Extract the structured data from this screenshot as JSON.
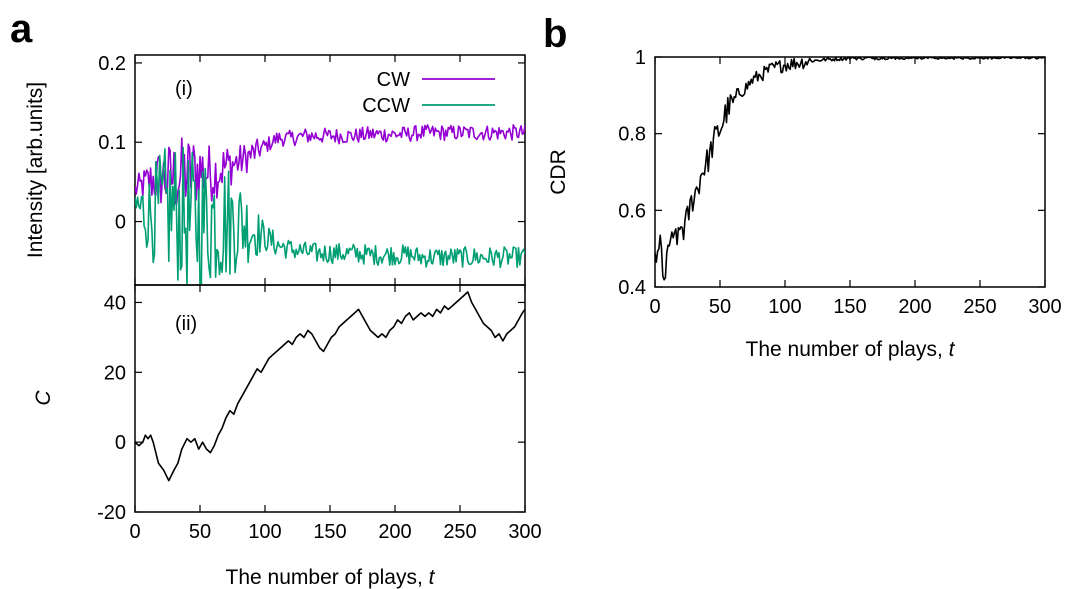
{
  "colors": {
    "cw": "#9400d3",
    "ccw": "#009e73",
    "black": "#000000"
  },
  "panel_labels": {
    "a": "a",
    "b": "b"
  },
  "chart_data": [
    {
      "panel": "a(i)",
      "type": "line",
      "label": "(i)",
      "ylabel": "Intensity [arb.units]",
      "xlabel": "",
      "xlim": [
        0,
        300
      ],
      "ylim": [
        -0.08,
        0.21
      ],
      "xticks": [
        "0",
        "50",
        "100",
        "150",
        "200",
        "250",
        "300"
      ],
      "yticks": [
        {
          "value": 0,
          "label": "0"
        },
        {
          "value": 0.1,
          "label": "0.1"
        },
        {
          "value": 0.2,
          "label": "0.2"
        }
      ],
      "legend_position": "top-right",
      "series": [
        {
          "name": "CW",
          "color": "#9400d3",
          "points": [
            [
              0,
              0.04
            ],
            [
              10,
              0.05
            ],
            [
              20,
              0.055
            ],
            [
              30,
              0.055
            ],
            [
              40,
              0.06
            ],
            [
              50,
              0.065
            ],
            [
              60,
              0.06
            ],
            [
              70,
              0.07
            ],
            [
              80,
              0.075
            ],
            [
              90,
              0.085
            ],
            [
              100,
              0.095
            ],
            [
              110,
              0.105
            ],
            [
              120,
              0.105
            ],
            [
              130,
              0.108
            ],
            [
              140,
              0.108
            ],
            [
              150,
              0.108
            ],
            [
              160,
              0.108
            ],
            [
              170,
              0.108
            ],
            [
              180,
              0.11
            ],
            [
              190,
              0.11
            ],
            [
              200,
              0.11
            ],
            [
              210,
              0.11
            ],
            [
              220,
              0.112
            ],
            [
              230,
              0.112
            ],
            [
              240,
              0.112
            ],
            [
              250,
              0.112
            ],
            [
              260,
              0.112
            ],
            [
              270,
              0.112
            ],
            [
              280,
              0.112
            ],
            [
              290,
              0.112
            ],
            [
              300,
              0.112
            ]
          ],
          "noise": [
            0.015,
            0.025,
            0.04,
            0.05,
            0.05,
            0.045,
            0.035,
            0.03,
            0.022,
            0.018,
            0.01,
            0.01,
            0.01,
            0.01,
            0.01,
            0.01,
            0.01,
            0.01,
            0.01,
            0.01,
            0.01,
            0.01,
            0.01,
            0.01,
            0.01,
            0.01,
            0.01,
            0.01,
            0.01,
            0.01,
            0.01
          ]
        },
        {
          "name": "CCW",
          "color": "#009e73",
          "points": [
            [
              0,
              0.02
            ],
            [
              10,
              0.01
            ],
            [
              20,
              0.01
            ],
            [
              30,
              0.015
            ],
            [
              40,
              0.0
            ],
            [
              50,
              0.0
            ],
            [
              60,
              0.005
            ],
            [
              70,
              0.0
            ],
            [
              80,
              0.0
            ],
            [
              90,
              -0.01
            ],
            [
              100,
              -0.02
            ],
            [
              110,
              -0.03
            ],
            [
              120,
              -0.035
            ],
            [
              130,
              -0.038
            ],
            [
              140,
              -0.04
            ],
            [
              150,
              -0.04
            ],
            [
              160,
              -0.04
            ],
            [
              170,
              -0.04
            ],
            [
              180,
              -0.042
            ],
            [
              190,
              -0.042
            ],
            [
              200,
              -0.042
            ],
            [
              210,
              -0.042
            ],
            [
              220,
              -0.045
            ],
            [
              230,
              -0.045
            ],
            [
              240,
              -0.045
            ],
            [
              250,
              -0.045
            ],
            [
              260,
              -0.045
            ],
            [
              270,
              -0.045
            ],
            [
              280,
              -0.045
            ],
            [
              290,
              -0.045
            ],
            [
              300,
              -0.045
            ]
          ],
          "noise": [
            0.03,
            0.05,
            0.08,
            0.09,
            0.09,
            0.09,
            0.09,
            0.08,
            0.06,
            0.04,
            0.018,
            0.015,
            0.013,
            0.013,
            0.013,
            0.013,
            0.013,
            0.013,
            0.013,
            0.013,
            0.013,
            0.013,
            0.013,
            0.013,
            0.013,
            0.013,
            0.013,
            0.013,
            0.013,
            0.013,
            0.013
          ]
        }
      ]
    },
    {
      "panel": "a(ii)",
      "type": "line",
      "label": "(ii)",
      "ylabel": "C",
      "xlabel": "The number of plays, t",
      "xlim": [
        0,
        300
      ],
      "ylim": [
        -20,
        45
      ],
      "xticks": [
        "0",
        "50",
        "100",
        "150",
        "200",
        "250",
        "300"
      ],
      "yticks": [
        {
          "value": -20,
          "label": "-20"
        },
        {
          "value": 0,
          "label": "0"
        },
        {
          "value": 20,
          "label": "20"
        },
        {
          "value": 40,
          "label": "40"
        }
      ],
      "series": [
        {
          "name": "",
          "color": "#000000",
          "points": [
            [
              0,
              0
            ],
            [
              3,
              -1
            ],
            [
              6,
              0
            ],
            [
              8,
              2
            ],
            [
              10,
              1
            ],
            [
              12,
              2
            ],
            [
              14,
              0
            ],
            [
              16,
              -3
            ],
            [
              18,
              -6
            ],
            [
              22,
              -8
            ],
            [
              26,
              -11
            ],
            [
              30,
              -8
            ],
            [
              33,
              -6
            ],
            [
              36,
              -2
            ],
            [
              40,
              1
            ],
            [
              43,
              0
            ],
            [
              46,
              1
            ],
            [
              49,
              -2
            ],
            [
              52,
              0
            ],
            [
              55,
              -2
            ],
            [
              58,
              -3
            ],
            [
              61,
              -1
            ],
            [
              64,
              2
            ],
            [
              67,
              4
            ],
            [
              70,
              7
            ],
            [
              73,
              9
            ],
            [
              76,
              8
            ],
            [
              79,
              11
            ],
            [
              82,
              13
            ],
            [
              85,
              15
            ],
            [
              88,
              17
            ],
            [
              91,
              19
            ],
            [
              94,
              21
            ],
            [
              97,
              20
            ],
            [
              100,
              22
            ],
            [
              103,
              24
            ],
            [
              106,
              25
            ],
            [
              109,
              26
            ],
            [
              112,
              27
            ],
            [
              115,
              28
            ],
            [
              118,
              29
            ],
            [
              121,
              28
            ],
            [
              124,
              30
            ],
            [
              127,
              31
            ],
            [
              130,
              30
            ],
            [
              133,
              32
            ],
            [
              136,
              31
            ],
            [
              139,
              29
            ],
            [
              142,
              27
            ],
            [
              145,
              26
            ],
            [
              148,
              28
            ],
            [
              151,
              30
            ],
            [
              154,
              31
            ],
            [
              157,
              33
            ],
            [
              160,
              34
            ],
            [
              163,
              35
            ],
            [
              166,
              36
            ],
            [
              169,
              37
            ],
            [
              172,
              38
            ],
            [
              175,
              36
            ],
            [
              178,
              34
            ],
            [
              181,
              32
            ],
            [
              184,
              31
            ],
            [
              187,
              30
            ],
            [
              190,
              31
            ],
            [
              193,
              30
            ],
            [
              196,
              32
            ],
            [
              199,
              33
            ],
            [
              202,
              35
            ],
            [
              205,
              34
            ],
            [
              208,
              36
            ],
            [
              211,
              37
            ],
            [
              214,
              35
            ],
            [
              217,
              36
            ],
            [
              220,
              37
            ],
            [
              223,
              36
            ],
            [
              226,
              37
            ],
            [
              229,
              36
            ],
            [
              232,
              38
            ],
            [
              235,
              37
            ],
            [
              238,
              39
            ],
            [
              241,
              38
            ],
            [
              244,
              39
            ],
            [
              247,
              40
            ],
            [
              250,
              41
            ],
            [
              253,
              42
            ],
            [
              256,
              43
            ],
            [
              259,
              40
            ],
            [
              262,
              38
            ],
            [
              265,
              36
            ],
            [
              268,
              34
            ],
            [
              271,
              33
            ],
            [
              274,
              32
            ],
            [
              277,
              30
            ],
            [
              280,
              31
            ],
            [
              283,
              29
            ],
            [
              286,
              31
            ],
            [
              289,
              32
            ],
            [
              292,
              33
            ],
            [
              295,
              35
            ],
            [
              298,
              37
            ],
            [
              300,
              38
            ]
          ]
        }
      ]
    },
    {
      "panel": "b",
      "type": "line",
      "ylabel": "CDR",
      "xlabel": "The number of plays, t",
      "xlim": [
        0,
        300
      ],
      "ylim": [
        0.4,
        1.0
      ],
      "xticks": [
        "0",
        "50",
        "100",
        "150",
        "200",
        "250",
        "300"
      ],
      "yticks": [
        {
          "value": 0.4,
          "label": "0.4"
        },
        {
          "value": 0.6,
          "label": "0.6"
        },
        {
          "value": 0.8,
          "label": "0.8"
        },
        {
          "value": 1.0,
          "label": "1"
        }
      ],
      "series": [
        {
          "name": "",
          "color": "#000000",
          "points": [
            [
              0,
              0.5
            ],
            [
              2,
              0.46
            ],
            [
              4,
              0.52
            ],
            [
              6,
              0.45
            ],
            [
              8,
              0.41
            ],
            [
              10,
              0.5
            ],
            [
              12,
              0.53
            ],
            [
              14,
              0.5
            ],
            [
              16,
              0.55
            ],
            [
              18,
              0.52
            ],
            [
              20,
              0.56
            ],
            [
              22,
              0.55
            ],
            [
              25,
              0.58
            ],
            [
              28,
              0.62
            ],
            [
              30,
              0.64
            ],
            [
              33,
              0.66
            ],
            [
              36,
              0.7
            ],
            [
              39,
              0.72
            ],
            [
              42,
              0.74
            ],
            [
              45,
              0.78
            ],
            [
              48,
              0.8
            ],
            [
              51,
              0.82
            ],
            [
              54,
              0.85
            ],
            [
              57,
              0.87
            ],
            [
              60,
              0.88
            ],
            [
              63,
              0.9
            ],
            [
              66,
              0.91
            ],
            [
              70,
              0.92
            ],
            [
              75,
              0.94
            ],
            [
              80,
              0.95
            ],
            [
              85,
              0.96
            ],
            [
              90,
              0.97
            ],
            [
              95,
              0.975
            ],
            [
              100,
              0.98
            ],
            [
              110,
              0.985
            ],
            [
              120,
              0.99
            ],
            [
              130,
              0.993
            ],
            [
              140,
              0.995
            ],
            [
              150,
              0.997
            ],
            [
              175,
              0.998
            ],
            [
              200,
              0.999
            ],
            [
              250,
              0.999
            ],
            [
              300,
              1.0
            ]
          ],
          "noise": 0.012
        }
      ]
    }
  ]
}
